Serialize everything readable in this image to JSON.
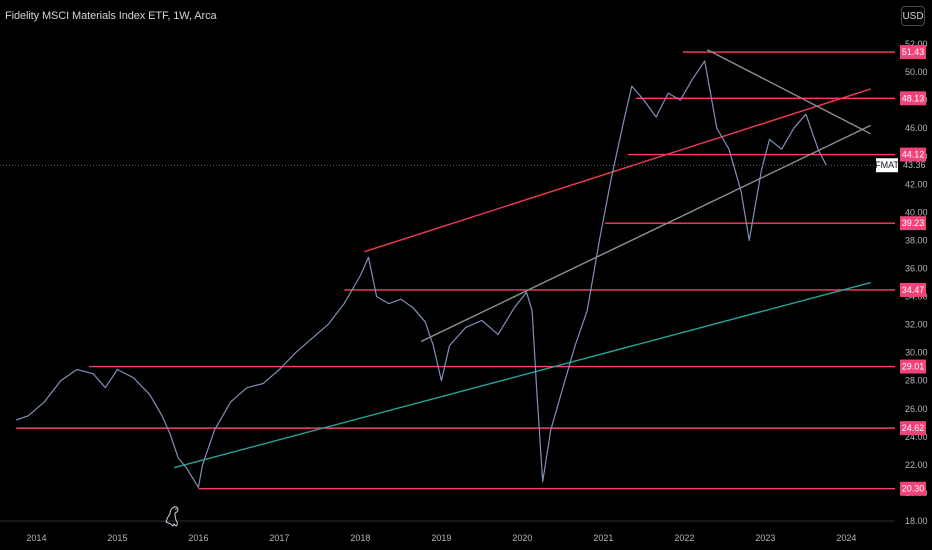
{
  "header": {
    "title": "Fidelity MSCI Materials Index ETF, 1W, Arca",
    "currency": "USD"
  },
  "colors": {
    "background": "#000000",
    "price": "#7f8fb5",
    "horizontal_level": "#ff3d6a",
    "resistance": "#f23b55",
    "support": "#26a69a",
    "grey_line": "#8e8e8e",
    "label_bg": "#f0437a",
    "ticker_bg": "#ffffff"
  },
  "chart_data": {
    "type": "line",
    "symbol": "FMAT",
    "last_price": "43.36",
    "xlim": [
      2013.55,
      2024.6
    ],
    "ylim": [
      18,
      53
    ],
    "x_ticks": [
      "2014",
      "2015",
      "2016",
      "2017",
      "2018",
      "2019",
      "2020",
      "2021",
      "2022",
      "2023",
      "2024"
    ],
    "y_ticks": [
      "52.00",
      "50.00",
      "48.00",
      "46.00",
      "44.00",
      "42.00",
      "40.00",
      "38.00",
      "36.00",
      "34.00",
      "32.00",
      "30.00",
      "28.00",
      "26.00",
      "24.00",
      "22.00",
      "20.00",
      "18.00"
    ],
    "series": [
      {
        "x": [
          2013.75,
          2013.9,
          2014.1,
          2014.3,
          2014.5,
          2014.7,
          2014.85,
          2015.0,
          2015.2,
          2015.4,
          2015.55,
          2015.65,
          2015.75,
          2015.85,
          2016.0,
          2016.05,
          2016.2,
          2016.4,
          2016.6,
          2016.8,
          2017.0,
          2017.2,
          2017.4,
          2017.6,
          2017.8,
          2018.0,
          2018.1,
          2018.2,
          2018.35,
          2018.5,
          2018.65,
          2018.8,
          2018.9,
          2019.0,
          2019.1,
          2019.3,
          2019.5,
          2019.7,
          2019.9,
          2020.05,
          2020.12,
          2020.18,
          2020.25,
          2020.35,
          2020.5,
          2020.65,
          2020.8,
          2020.95,
          2021.1,
          2021.25,
          2021.35,
          2021.5,
          2021.65,
          2021.8,
          2021.95,
          2022.1,
          2022.25,
          2022.4,
          2022.55,
          2022.7,
          2022.8,
          2022.95,
          2023.05,
          2023.2,
          2023.35,
          2023.5,
          2023.65,
          2023.75
        ],
        "y": [
          25.2,
          25.5,
          26.5,
          28.0,
          28.8,
          28.5,
          27.5,
          28.8,
          28.2,
          27.0,
          25.5,
          24.2,
          22.5,
          21.8,
          20.4,
          22.0,
          24.5,
          26.5,
          27.5,
          27.8,
          28.8,
          30.0,
          31.0,
          32.0,
          33.5,
          35.5,
          36.8,
          34.0,
          33.5,
          33.8,
          33.2,
          32.2,
          30.5,
          28.0,
          30.5,
          31.8,
          32.3,
          31.3,
          33.2,
          34.3,
          33.0,
          27.0,
          20.8,
          24.5,
          27.5,
          30.5,
          33.0,
          38.0,
          42.5,
          46.5,
          49.0,
          48.0,
          46.8,
          48.5,
          48.0,
          49.5,
          50.8,
          46.0,
          44.5,
          41.5,
          38.0,
          43.0,
          45.2,
          44.5,
          46.0,
          47.0,
          44.5,
          43.36
        ]
      }
    ],
    "levels": [
      {
        "label": "51.43",
        "value": 51.43,
        "from_year": 2021.98
      },
      {
        "label": "48.13",
        "value": 48.13,
        "from_year": 2021.4
      },
      {
        "label": "44.12",
        "value": 44.12,
        "from_year": 2021.3
      },
      {
        "label": "39.23",
        "value": 39.23,
        "from_year": 2021.02
      },
      {
        "label": "34.47",
        "value": 34.47,
        "from_year": 2017.8
      },
      {
        "label": "29.01",
        "value": 29.01,
        "from_year": 2014.65
      },
      {
        "label": "24.62",
        "value": 24.62,
        "from_year": 2013.75
      },
      {
        "label": "20.30",
        "value": 20.3,
        "from_year": 2016.0
      }
    ],
    "trendlines": [
      {
        "type": "resistance",
        "from": [
          2018.05,
          37.2
        ],
        "to": [
          2024.3,
          48.8
        ]
      },
      {
        "type": "support",
        "from": [
          2015.7,
          21.8
        ],
        "to": [
          2024.3,
          35.0
        ]
      },
      {
        "type": "grey_line",
        "from": [
          2018.75,
          30.8
        ],
        "to": [
          2024.3,
          46.2
        ]
      },
      {
        "type": "grey_line",
        "from": [
          2022.28,
          51.6
        ],
        "to": [
          2024.3,
          45.6
        ]
      }
    ]
  }
}
